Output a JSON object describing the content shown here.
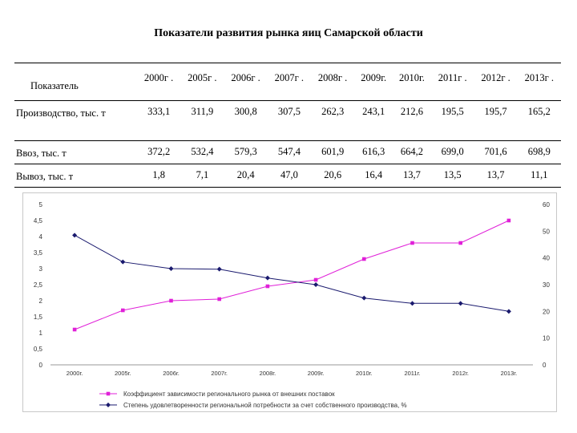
{
  "page_title": "Показатели развития рынка яиц Самарской области",
  "table": {
    "corner_label": "Показатель",
    "columns": [
      "2000г .",
      "2005г .",
      "2006г .",
      "2007г .",
      "2008г .",
      "2009г.",
      "2010г.",
      "2011г .",
      "2012г .",
      "2013г ."
    ],
    "rows": [
      {
        "label": "Производство, тыс. т",
        "values": [
          "333,1",
          "311,9",
          "300,8",
          "307,5",
          "262,3",
          "243,1",
          "212,6",
          "195,5",
          "195,7",
          "165,2"
        ]
      },
      {
        "label": "Ввоз, тыс. т",
        "values": [
          "372,2",
          "532,4",
          "579,3",
          "547,4",
          "601,9",
          "616,3",
          "664,2",
          "699,0",
          "701,6",
          "698,9"
        ]
      },
      {
        "label": "Вывоз, тыс. т",
        "values": [
          "1,8",
          "7,1",
          "20,4",
          "47,0",
          "20,6",
          "16,4",
          "13,7",
          "13,5",
          "13,7",
          "11,1"
        ]
      }
    ]
  },
  "chart_data": {
    "type": "line",
    "categories": [
      "2000г.",
      "2005г.",
      "2006г.",
      "2007г.",
      "2008г.",
      "2009г.",
      "2010г.",
      "2011г.",
      "2012г.",
      "2013г."
    ],
    "y_left": {
      "min": 0,
      "max": 5,
      "ticks": [
        "0",
        "0,5",
        "1",
        "1,5",
        "2",
        "2,5",
        "3",
        "3,5",
        "4",
        "4,5",
        "5"
      ]
    },
    "y_right": {
      "min": 0,
      "max": 60,
      "ticks": [
        "0",
        "10",
        "20",
        "30",
        "40",
        "50",
        "60"
      ]
    },
    "grid": false,
    "legend_position": "bottom",
    "series": [
      {
        "name": "Коэффициент зависимости регионального рынка от внешних поставок",
        "axis": "left",
        "color": "#e020d8",
        "marker": "square",
        "values": [
          1.1,
          1.7,
          2.0,
          2.05,
          2.45,
          2.65,
          3.3,
          3.8,
          3.8,
          4.5
        ]
      },
      {
        "name": "Степень удовлетворенности региональной потребности за счет собственного производства, %",
        "axis": "right",
        "color": "#1a1a6e",
        "marker": "diamond",
        "values": [
          48.5,
          38.5,
          36.0,
          35.8,
          32.5,
          30.0,
          25.0,
          23.0,
          23.0,
          20.0
        ]
      }
    ]
  }
}
